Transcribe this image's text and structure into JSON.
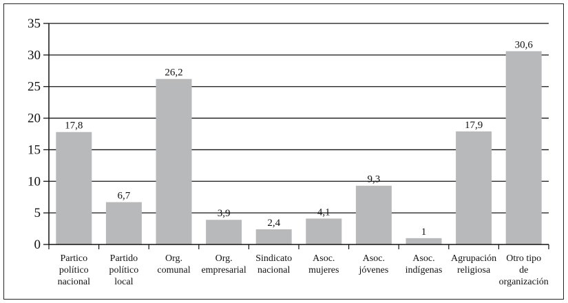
{
  "chart_data": {
    "type": "bar",
    "categories": [
      [
        "Partico",
        "político",
        "nacional"
      ],
      [
        "Partido",
        "político",
        "local"
      ],
      [
        "Org.",
        "comunal"
      ],
      [
        "Org.",
        "empresarial"
      ],
      [
        "Sindicato",
        "nacional"
      ],
      [
        "Asoc.",
        "mujeres"
      ],
      [
        "Asoc.",
        "jóvenes"
      ],
      [
        "Asoc.",
        "indígenas"
      ],
      [
        "Agrupación",
        "religiosa"
      ],
      [
        "Otro tipo",
        "de",
        "organización"
      ]
    ],
    "values": [
      17.8,
      6.7,
      26.2,
      3.9,
      2.4,
      4.1,
      9.3,
      1,
      17.9,
      30.6
    ],
    "value_labels": [
      "17,8",
      "6,7",
      "26,2",
      "3,9",
      "2,4",
      "4,1",
      "9,3",
      "1",
      "17,9",
      "30,6"
    ],
    "yticks": [
      "0",
      "5",
      "10",
      "15",
      "20",
      "25",
      "30",
      "35"
    ],
    "ylim": [
      0,
      35
    ],
    "grid": true,
    "colors": {
      "bar": "#b8b9bb",
      "grid": "#111111",
      "axis": "#111111"
    }
  }
}
